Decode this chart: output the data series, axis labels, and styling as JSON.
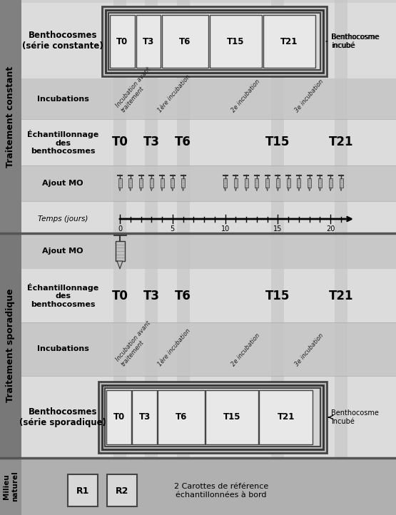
{
  "t_labels": [
    "T0",
    "T3",
    "T6",
    "T15",
    "T21"
  ],
  "t_days": [
    0,
    3,
    6,
    15,
    21
  ],
  "r_labels": [
    "R1",
    "R2"
  ],
  "side_constant": "Traitement constant",
  "side_sporadique": "Traitement sporadique",
  "side_milieu": "Milieu\nnaturel",
  "label_benthocosmes_const": "Benthocosmes\n(série constante)",
  "label_benthocosmes_spor": "Benthocosmes\n(série sporadique)",
  "label_benthocosme_incube": "Benthocosme\nincubé",
  "label_incubations": "Incubations",
  "label_echantillonnage": "Échantillonnage\ndes\nbenthocosmes",
  "label_ajout_mo": "Ajout MO",
  "label_temps": "Temps (jours)",
  "incub_texts": [
    "Incubation avant\ntraitement",
    "1ère incubation",
    "2e incubation",
    "3e incubation"
  ],
  "ref_text": "2 Carottes de référence\néchantillonnées à bord",
  "col_bg": "#c0c0c0",
  "col_const_bg": "#d0d0d0",
  "col_spor_bg": "#b8b8b8",
  "col_milieu_bg": "#b0b0b0",
  "col_side_const": "#808080",
  "col_side_spor": "#787878",
  "col_side_milieu": "#909090",
  "col_row_light": "#dcdcdc",
  "col_row_dark": "#c8c8c8",
  "col_box_outer_bg": "#b0b0b0",
  "col_box_inner_bg": "#d0d0d0",
  "col_box_cell": "#e8e8e8",
  "col_vband": "#c4c4c4",
  "day_max": 21
}
